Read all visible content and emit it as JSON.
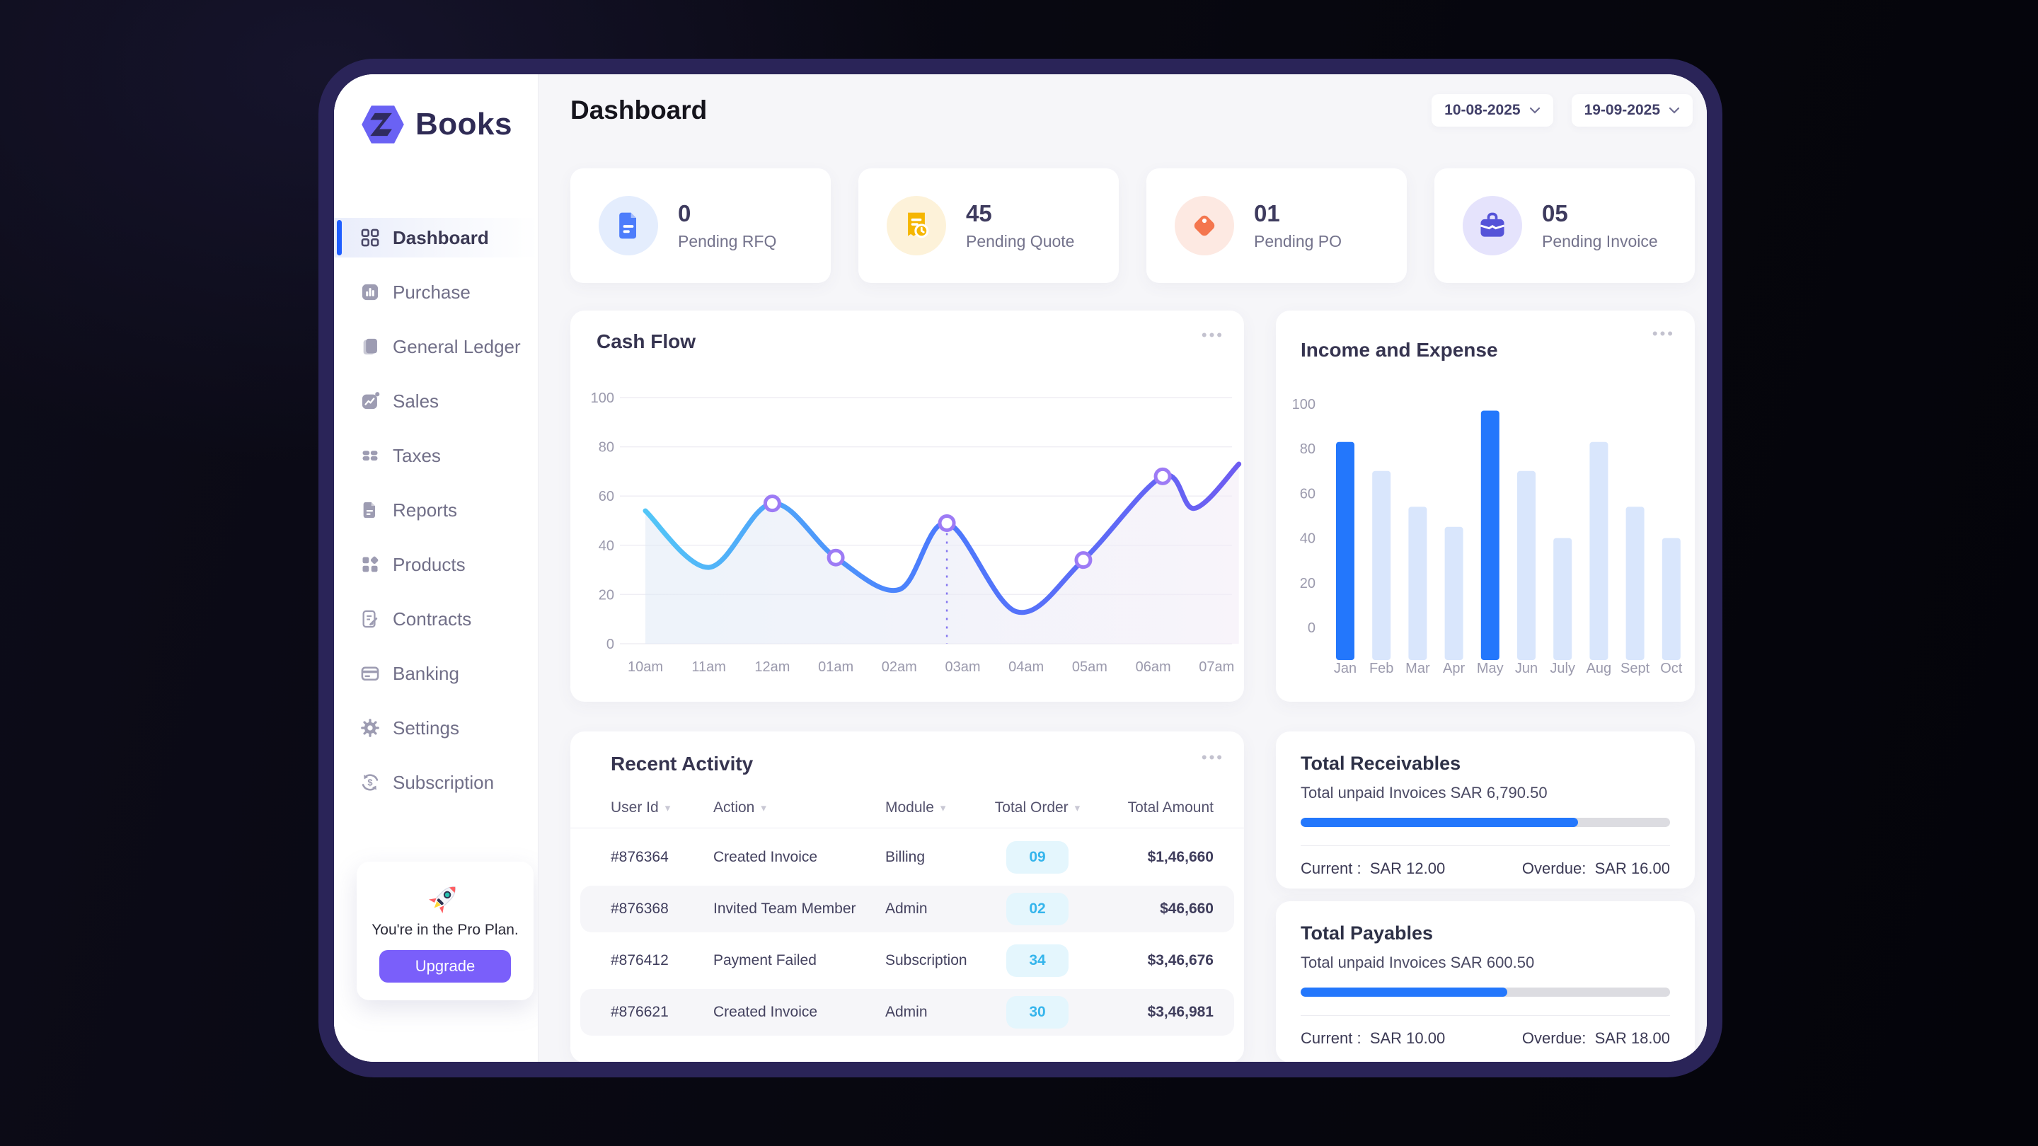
{
  "app": {
    "name": "Books",
    "accent_blue": "#2377fc",
    "accent_purple": "#7a5ffa",
    "frame_color": "#2a2458"
  },
  "sidebar": {
    "logo_text": "Books",
    "items": [
      {
        "label": "Dashboard",
        "active": true
      },
      {
        "label": "Purchase"
      },
      {
        "label": "General Ledger"
      },
      {
        "label": "Sales"
      },
      {
        "label": "Taxes"
      },
      {
        "label": "Reports"
      },
      {
        "label": "Products"
      },
      {
        "label": "Contracts"
      },
      {
        "label": "Banking"
      },
      {
        "label": "Settings"
      },
      {
        "label": "Subscription"
      }
    ],
    "plan": {
      "message": "You're in the Pro Plan.",
      "button_label": "Upgrade"
    }
  },
  "header": {
    "title": "Dashboard",
    "date_from": "10-08-2025",
    "date_to": "19-09-2025"
  },
  "stats": [
    {
      "value": "0",
      "label": "Pending RFQ",
      "icon": "document-icon",
      "icon_bg": "#e4edfd",
      "icon_color": "#4d7dfb"
    },
    {
      "value": "45",
      "label": "Pending Quote",
      "icon": "receipt-clock-icon",
      "icon_bg": "#fdf2d9",
      "icon_color": "#f5b602"
    },
    {
      "value": "01",
      "label": "Pending PO",
      "icon": "tag-icon",
      "icon_bg": "#fde9e2",
      "icon_color": "#f4764e"
    },
    {
      "value": "05",
      "label": "Pending Invoice",
      "icon": "briefcase-icon",
      "icon_bg": "#e5e3fc",
      "icon_color": "#5553d8"
    }
  ],
  "chart_data": [
    {
      "type": "line",
      "title": "Cash Flow",
      "x_labels": [
        "10am",
        "11am",
        "12am",
        "01am",
        "02am",
        "03am",
        "04am",
        "05am",
        "06am",
        "07am"
      ],
      "ylim": [
        0,
        100
      ],
      "yticks": [
        0,
        20,
        40,
        60,
        80,
        100
      ],
      "points": [
        {
          "x": 0,
          "y": 54
        },
        {
          "x": 1,
          "y": 31
        },
        {
          "x": 2,
          "y": 57,
          "marker": true
        },
        {
          "x": 3,
          "y": 35,
          "marker": true
        },
        {
          "x": 4,
          "y": 22
        },
        {
          "x": 4.75,
          "y": 49,
          "marker": true,
          "dashed_drop": true
        },
        {
          "x": 5.85,
          "y": 13
        },
        {
          "x": 6.9,
          "y": 34,
          "marker": true
        },
        {
          "x": 8.15,
          "y": 68,
          "marker": true
        },
        {
          "x": 8.65,
          "y": 55
        },
        {
          "x": 9.35,
          "y": 73
        }
      ],
      "line_gradient": [
        "#53c6f7",
        "#4b7bfd",
        "#6e5cf1"
      ],
      "area_gradient": [
        "#dfe9f5",
        "#f3ecf7"
      ],
      "marker_color": "#9d7bf5",
      "grid": true
    },
    {
      "type": "bar",
      "title": "Income and Expense",
      "categories": [
        "Jan",
        "Feb",
        "Mar",
        "Apr",
        "May",
        "Jun",
        "July",
        "Aug",
        "Sept",
        "Oct"
      ],
      "values": [
        83,
        70,
        54,
        45,
        97,
        70,
        40,
        83,
        54,
        40
      ],
      "highlight_indexes": [
        0,
        4
      ],
      "bar_color": "#d9e6fc",
      "highlight_color": "#2377fc",
      "ylim": [
        0,
        100
      ],
      "yticks": [
        0,
        20,
        40,
        60,
        80,
        100
      ],
      "grid": false
    }
  ],
  "recent_activity": {
    "title": "Recent Activity",
    "columns": [
      {
        "label": "User Id",
        "sortable": true
      },
      {
        "label": "Action",
        "sortable": true
      },
      {
        "label": "Module",
        "sortable": true
      },
      {
        "label": "Total Order",
        "sortable": true
      },
      {
        "label": "Total Amount",
        "sortable": false
      }
    ],
    "rows": [
      {
        "user_id": "#876364",
        "action": "Created Invoice",
        "module": "Billing",
        "total_order": "09",
        "total_amount": "$1,46,660"
      },
      {
        "user_id": "#876368",
        "action": "Invited Team Member",
        "module": "Admin",
        "total_order": "02",
        "total_amount": "$46,660"
      },
      {
        "user_id": "#876412",
        "action": "Payment Failed",
        "module": "Subscription",
        "total_order": "34",
        "total_amount": "$3,46,676"
      },
      {
        "user_id": "#876621",
        "action": "Created Invoice",
        "module": "Admin",
        "total_order": "30",
        "total_amount": "$3,46,981"
      }
    ]
  },
  "receivables": {
    "title": "Total Receivables",
    "subtitle": "Total unpaid Invoices SAR 6,790.50",
    "progress_pct": 75,
    "current_label": "Current :",
    "current_value": "SAR 12.00",
    "overdue_label": "Overdue:",
    "overdue_value": "SAR 16.00"
  },
  "payables": {
    "title": "Total Payables",
    "subtitle": "Total unpaid Invoices SAR 600.50",
    "progress_pct": 56,
    "current_label": "Current :",
    "current_value": "SAR 10.00",
    "overdue_label": "Overdue:",
    "overdue_value": "SAR 18.00"
  }
}
